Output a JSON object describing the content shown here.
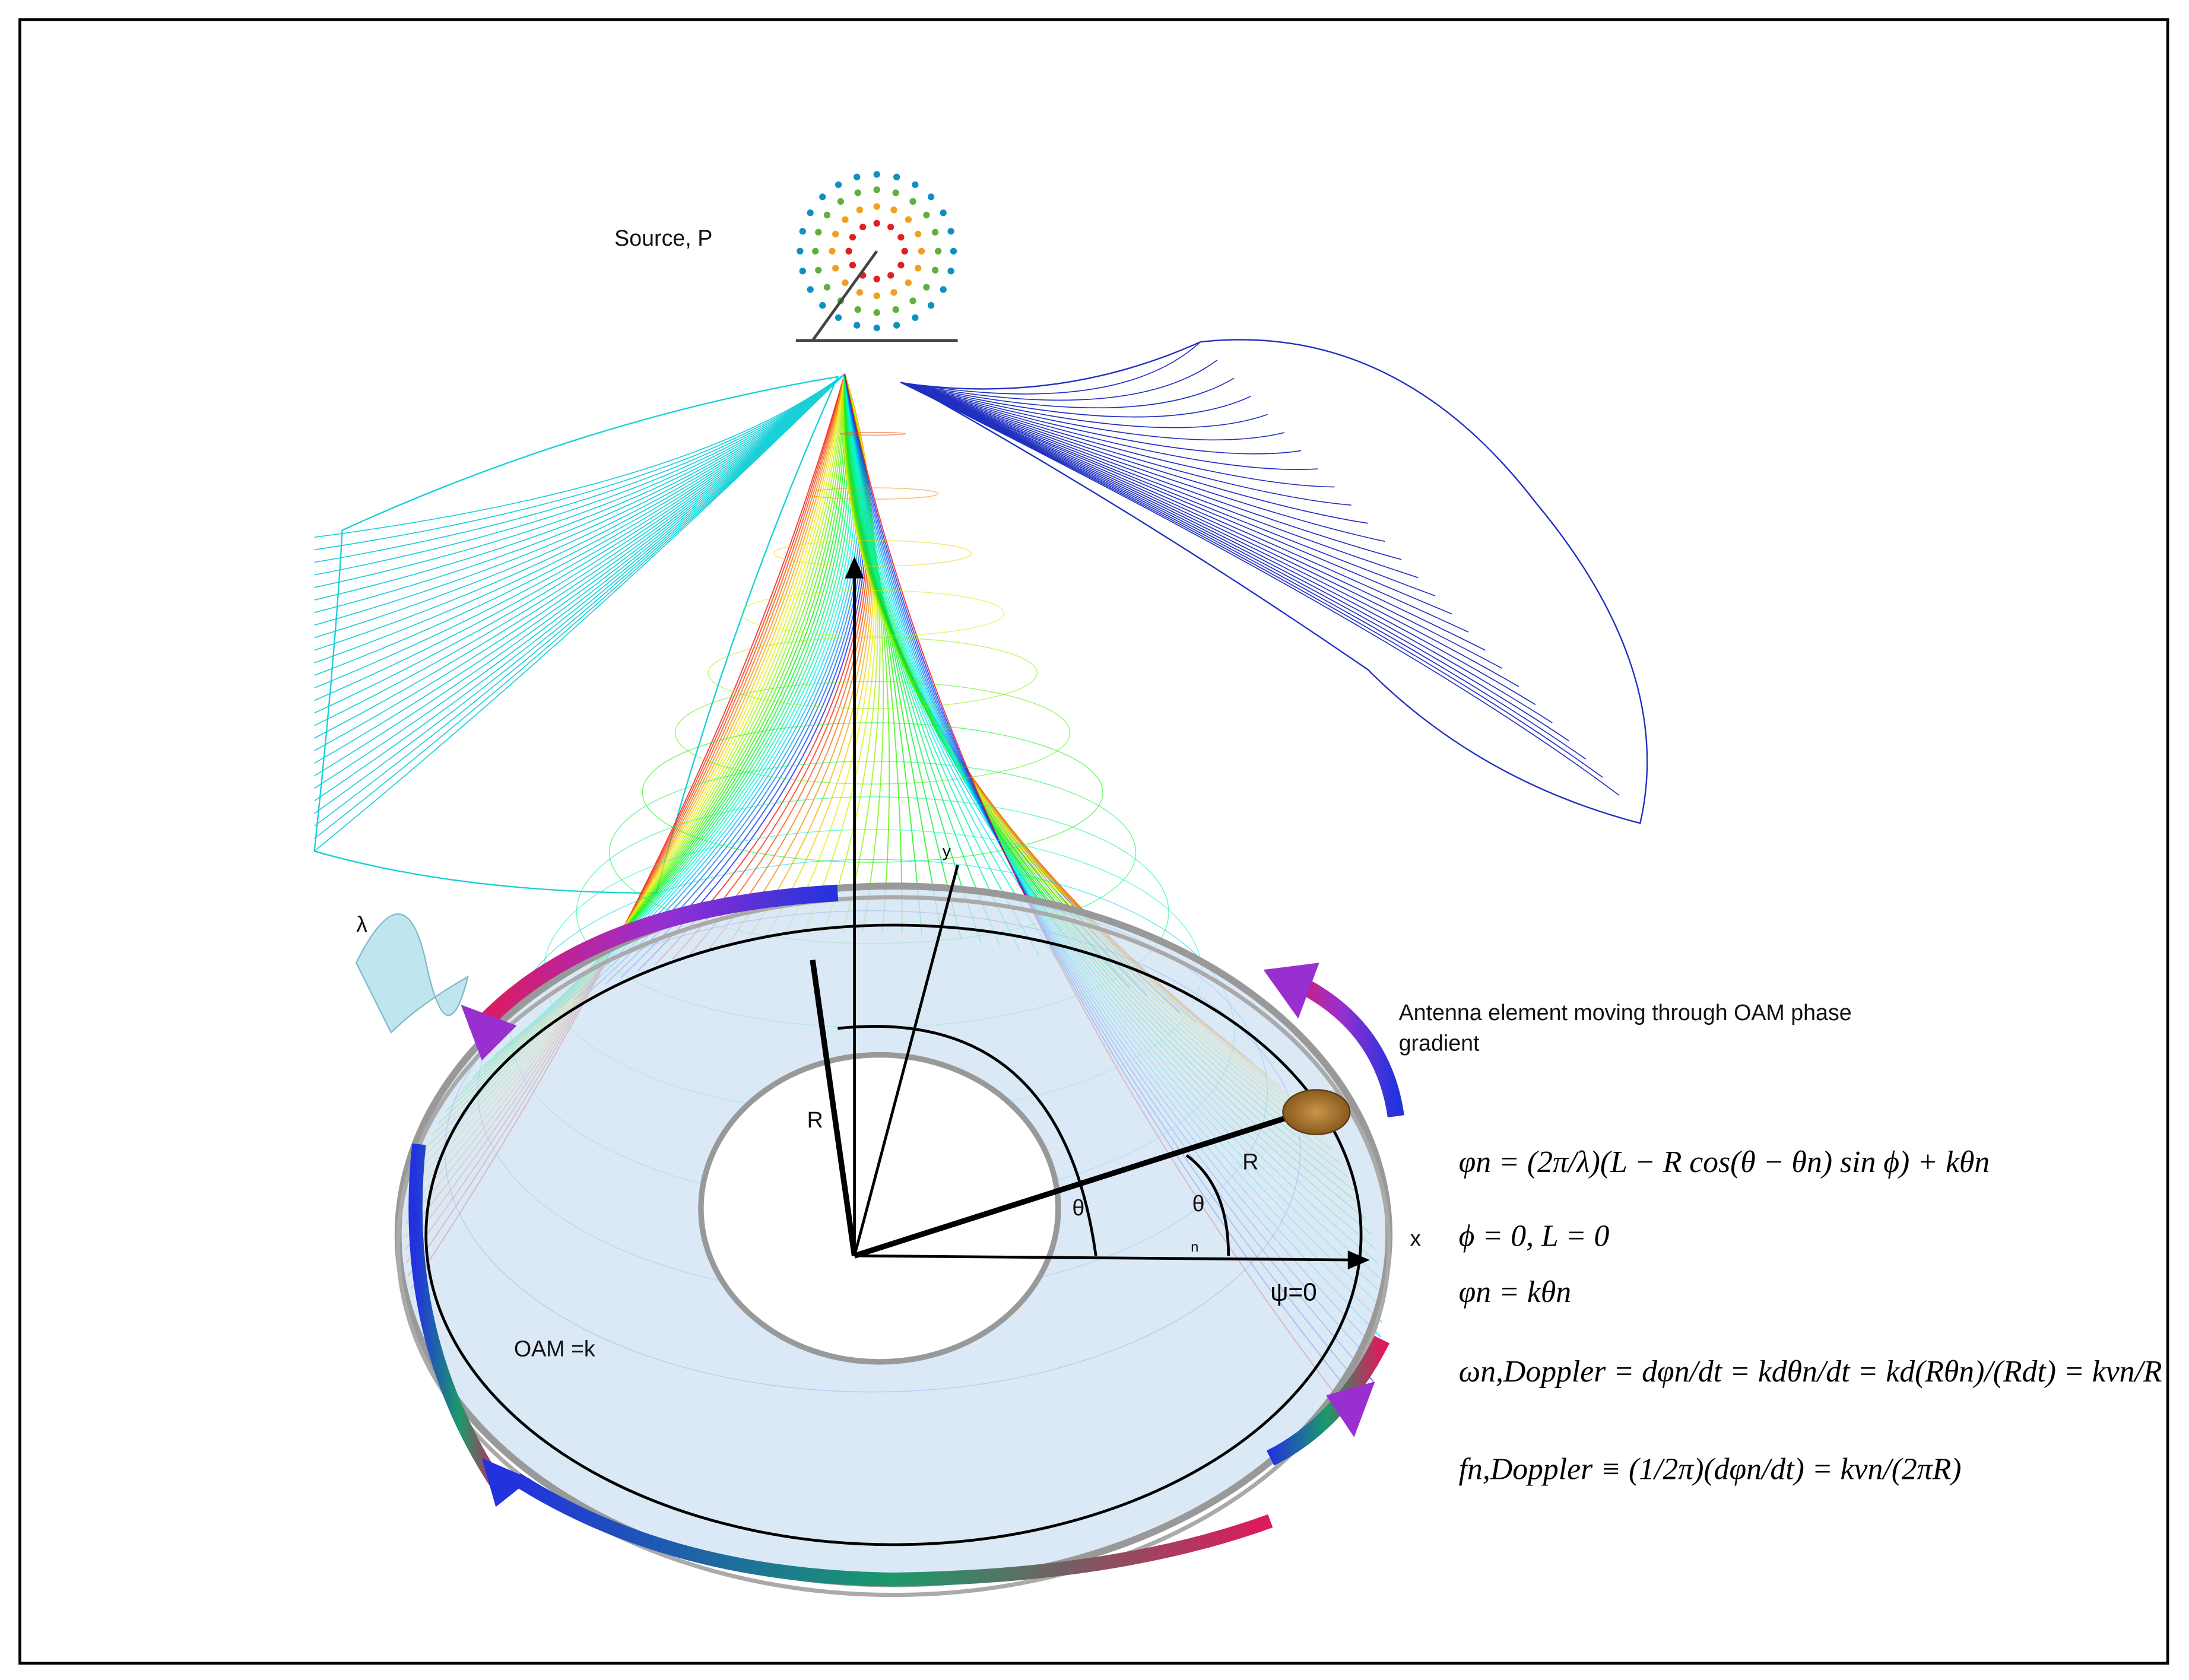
{
  "labels": {
    "source": "Source, P",
    "lambda": "λ",
    "antenna": [
      "Antenna element moving through OAM phase",
      "gradient"
    ],
    "radius_inner": "R",
    "radius_outer": "R",
    "theta": "θ",
    "theta_n": "θ",
    "theta_n_sub": "n",
    "axis_x": "x",
    "axis_y": "y",
    "psi": "ψ=0",
    "oam": "OAM =k"
  },
  "equations": [
    "φn = (2π/λ)(L − R cos(θ − θn) sin ϕ) + kθn",
    "ϕ = 0, L = 0",
    "φn = kθn",
    "ωn,Doppler = dφn/dt = kdθn/dt = kd(Rθn)/(Rdt) = kvn/R",
    "fn,Doppler ≡ (1/2π)(dφn/dt) = kvn/(2πR)"
  ]
}
